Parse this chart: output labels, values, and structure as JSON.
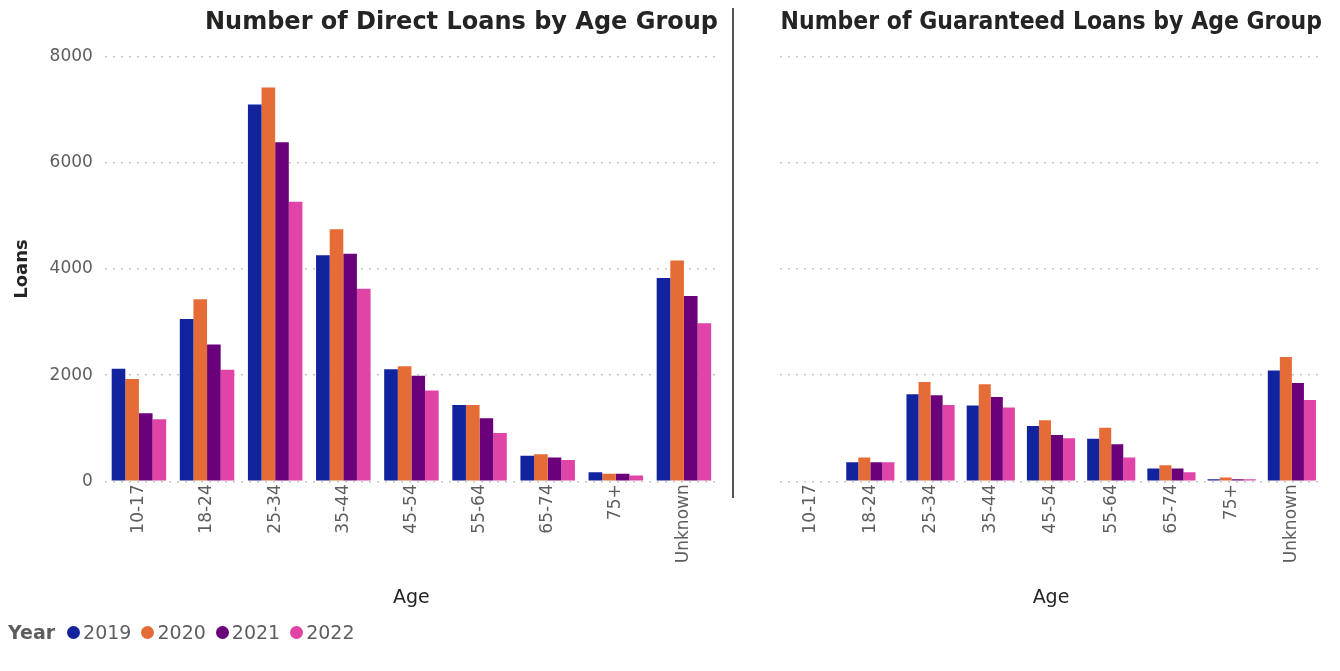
{
  "chart_data": [
    {
      "type": "bar",
      "title": "Number of Direct Loans by Age Group",
      "xlabel": "Age",
      "ylabel": "Loans",
      "legend_title": "Year",
      "legend": "bottom left",
      "grid": "y",
      "categories": [
        "10-17",
        "18-24",
        "25-34",
        "35-44",
        "45-54",
        "55-64",
        "65-74",
        "75+",
        "Unknown"
      ],
      "ylim": [
        0,
        8000
      ],
      "yticks": [
        0,
        2000,
        4000,
        6000,
        8000
      ],
      "series": [
        {
          "name": "2019",
          "color": "#12239e",
          "values": [
            2120,
            3060,
            7100,
            4260,
            2110,
            1440,
            480,
            170,
            3830
          ]
        },
        {
          "name": "2020",
          "color": "#e66c37",
          "values": [
            1930,
            3430,
            7420,
            4750,
            2170,
            1440,
            510,
            140,
            4160
          ]
        },
        {
          "name": "2021",
          "color": "#6b007b",
          "values": [
            1280,
            2580,
            6390,
            4290,
            1990,
            1190,
            450,
            140,
            3490
          ]
        },
        {
          "name": "2022",
          "color": "#e044a7",
          "values": [
            1170,
            2100,
            5270,
            3630,
            1710,
            910,
            400,
            110,
            2980
          ]
        }
      ]
    },
    {
      "type": "bar",
      "title": "Number of Guaranteed Loans by Age Group",
      "xlabel": "Age",
      "grid": "y",
      "tick_labels": "x",
      "categories": [
        "10-17",
        "18-24",
        "25-34",
        "35-44",
        "45-54",
        "55-64",
        "65-74",
        "75+",
        "Unknown"
      ],
      "ylim": [
        0,
        8000
      ],
      "yticks": [
        0,
        2000,
        4000,
        6000,
        8000
      ],
      "series": [
        {
          "name": "2019",
          "color": "#12239e",
          "values": [
            null,
            360,
            1640,
            1430,
            1040,
            800,
            240,
            40,
            2090
          ]
        },
        {
          "name": "2020",
          "color": "#e66c37",
          "values": [
            null,
            450,
            1870,
            1830,
            1150,
            1010,
            300,
            70,
            2340
          ]
        },
        {
          "name": "2021",
          "color": "#6b007b",
          "values": [
            null,
            360,
            1620,
            1590,
            870,
            700,
            240,
            40,
            1850
          ]
        },
        {
          "name": "2022",
          "color": "#e044a7",
          "values": [
            null,
            360,
            1440,
            1390,
            810,
            450,
            170,
            40,
            1530
          ]
        }
      ]
    }
  ]
}
